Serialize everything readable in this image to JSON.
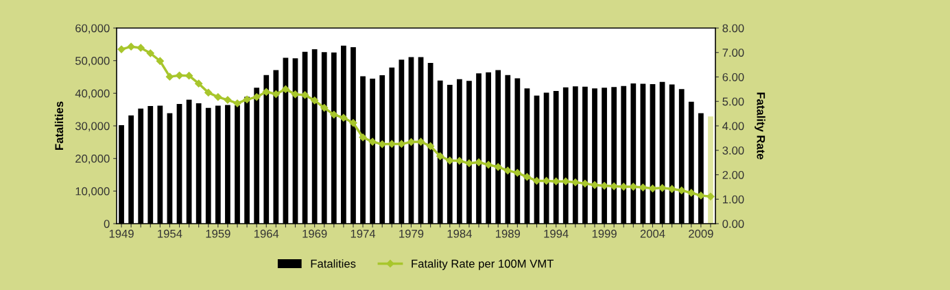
{
  "chart_data": {
    "type": "bar",
    "ylabel": "Fatalities",
    "y2label": "Fatality Rate",
    "categories": [
      "1949",
      null,
      null,
      null,
      null,
      "1954",
      null,
      null,
      null,
      null,
      "1959",
      null,
      null,
      null,
      null,
      "1964",
      null,
      null,
      null,
      null,
      "1969",
      null,
      null,
      null,
      null,
      "1974",
      null,
      null,
      null,
      null,
      "1979",
      null,
      null,
      null,
      null,
      "1984",
      null,
      null,
      null,
      null,
      "1989",
      null,
      null,
      null,
      null,
      "1994",
      null,
      null,
      null,
      null,
      "1999",
      null,
      null,
      null,
      null,
      "2004",
      null,
      null,
      null,
      null,
      "2009",
      null
    ],
    "series": [
      {
        "name": "Fatalities",
        "color": "#000000",
        "colors": [
          "#000000",
          "#000000",
          "#000000",
          "#000000",
          "#000000",
          "#000000",
          "#000000",
          "#000000",
          "#000000",
          "#000000",
          "#000000",
          "#000000",
          "#000000",
          "#000000",
          "#000000",
          "#000000",
          "#000000",
          "#000000",
          "#000000",
          "#000000",
          "#000000",
          "#000000",
          "#000000",
          "#000000",
          "#000000",
          "#000000",
          "#000000",
          "#000000",
          "#000000",
          "#000000",
          "#000000",
          "#000000",
          "#000000",
          "#000000",
          "#000000",
          "#000000",
          "#000000",
          "#000000",
          "#000000",
          "#000000",
          "#000000",
          "#000000",
          "#000000",
          "#000000",
          "#000000",
          "#000000",
          "#000000",
          "#000000",
          "#000000",
          "#000000",
          "#000000",
          "#000000",
          "#000000",
          "#000000",
          "#000000",
          "#000000",
          "#000000",
          "#000000",
          "#000000",
          "#000000",
          "#000000",
          "#dfe6a0"
        ],
        "values": [
          30200,
          33200,
          35300,
          36100,
          36200,
          33900,
          36700,
          38000,
          36900,
          35500,
          36200,
          36400,
          36300,
          38900,
          41700,
          45600,
          47100,
          50900,
          50700,
          52700,
          53500,
          52600,
          52500,
          54600,
          54100,
          45200,
          44500,
          45500,
          47900,
          50300,
          51100,
          51100,
          49300,
          43900,
          42600,
          44300,
          43800,
          46100,
          46400,
          47100,
          45600,
          44600,
          41500,
          39300,
          40200,
          40700,
          41800,
          42100,
          42000,
          41500,
          41700,
          41900,
          42200,
          43000,
          42900,
          42800,
          43500,
          42700,
          41300,
          37400,
          33900,
          32900
        ]
      },
      {
        "name": "Fatality Rate per 100M VMT",
        "type": "line",
        "axis": "y2",
        "color": "#a8c62c",
        "marker": "diamond",
        "values": [
          7.13,
          7.24,
          7.19,
          6.97,
          6.65,
          6.01,
          6.06,
          6.05,
          5.73,
          5.36,
          5.18,
          5.06,
          4.92,
          5.08,
          5.18,
          5.39,
          5.3,
          5.5,
          5.29,
          5.26,
          5.04,
          4.74,
          4.46,
          4.33,
          4.12,
          3.53,
          3.35,
          3.25,
          3.26,
          3.26,
          3.34,
          3.35,
          3.17,
          2.76,
          2.58,
          2.57,
          2.47,
          2.51,
          2.41,
          2.32,
          2.17,
          2.08,
          1.91,
          1.75,
          1.75,
          1.73,
          1.73,
          1.69,
          1.64,
          1.58,
          1.55,
          1.53,
          1.51,
          1.51,
          1.48,
          1.44,
          1.46,
          1.42,
          1.36,
          1.26,
          1.15,
          1.11
        ]
      }
    ],
    "ylim": [
      0,
      60000
    ],
    "yticks": [
      {
        "value": 0,
        "label": "0"
      },
      {
        "value": 10000,
        "label": "10,000"
      },
      {
        "value": 20000,
        "label": "20,000"
      },
      {
        "value": 30000,
        "label": "30,000"
      },
      {
        "value": 40000,
        "label": "40,000"
      },
      {
        "value": 50000,
        "label": "50,000"
      },
      {
        "value": 60000,
        "label": "60,000"
      }
    ],
    "y2lim": [
      0,
      8
    ],
    "y2ticks": [
      {
        "value": 0,
        "label": "0.00"
      },
      {
        "value": 1,
        "label": "1.00"
      },
      {
        "value": 2,
        "label": "2.00"
      },
      {
        "value": 3,
        "label": "3.00"
      },
      {
        "value": 4,
        "label": "4.00"
      },
      {
        "value": 5,
        "label": "5.00"
      },
      {
        "value": 6,
        "label": "6.00"
      },
      {
        "value": 7,
        "label": "7.00"
      },
      {
        "value": 8,
        "label": "8.00"
      }
    ],
    "grid": false,
    "legend": "bottom"
  }
}
